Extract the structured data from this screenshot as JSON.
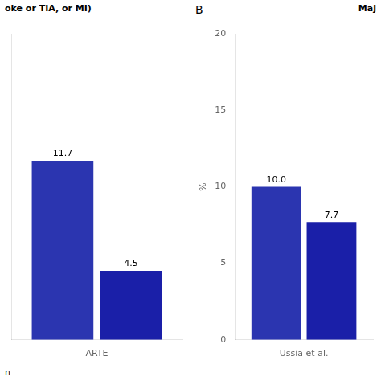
{
  "chart_data": [
    {
      "type": "bar",
      "annotations": [
        "oke or TIA, or MI)",
        "n"
      ],
      "categories": [
        "ARTE"
      ],
      "series": [
        {
          "color": "#2b35b0",
          "values": [
            11.7
          ]
        },
        {
          "color": "#1a1fa8",
          "values": [
            4.5
          ]
        }
      ],
      "ylim": [
        0,
        20
      ],
      "tick_labels": "x",
      "grid": false,
      "data_labels": true
    },
    {
      "type": "bar",
      "title": "B",
      "annotations": [
        "Maj"
      ],
      "ylabel": "%",
      "categories": [
        "Ussia et al."
      ],
      "series": [
        {
          "color": "#2b35b0",
          "values": [
            10.0
          ],
          "value_labels": [
            "10.0"
          ]
        },
        {
          "color": "#1a1fa8",
          "values": [
            7.7
          ],
          "value_labels": [
            "7.7"
          ]
        }
      ],
      "ylim": [
        0,
        20
      ],
      "yticks": [
        0,
        5,
        10,
        15,
        20
      ],
      "grid": false,
      "data_labels": true
    }
  ]
}
